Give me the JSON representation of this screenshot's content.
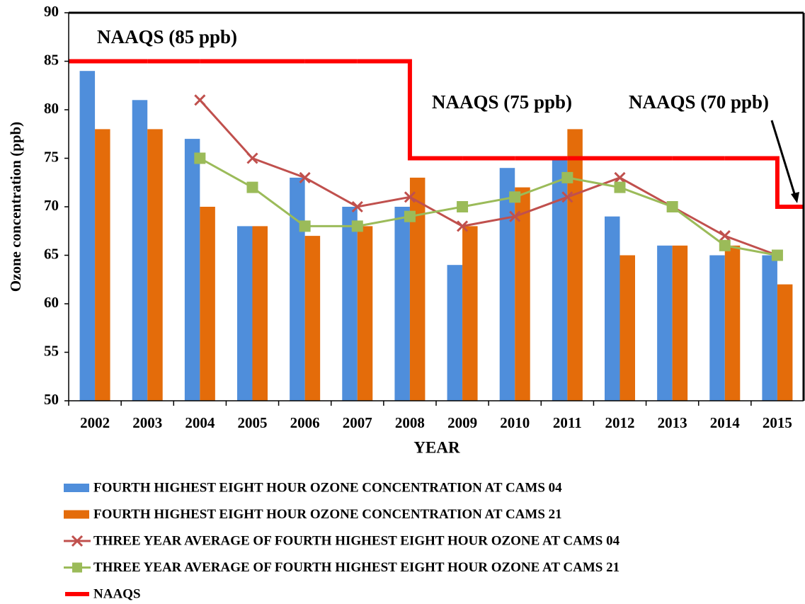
{
  "chart_data": {
    "type": "bar",
    "y_label": "Ozone concentration (ppb)",
    "x_label": "YEAR",
    "categories": [
      "2002",
      "2003",
      "2004",
      "2005",
      "2006",
      "2007",
      "2008",
      "2009",
      "2010",
      "2011",
      "2012",
      "2013",
      "2014",
      "2015"
    ],
    "series": [
      {
        "name": "FOURTH HIGHEST EIGHT HOUR OZONE CONCENTRATION AT CAMS 04",
        "type": "bar",
        "color": "#4f8edb",
        "values": [
          84,
          81,
          77,
          68,
          73,
          70,
          70,
          64,
          74,
          75,
          69,
          66,
          65,
          65
        ]
      },
      {
        "name": "FOURTH HIGHEST EIGHT HOUR OZONE CONCENTRATION AT CAMS 21",
        "type": "bar",
        "color": "#e46c0a",
        "values": [
          78,
          78,
          70,
          68,
          67,
          68,
          73,
          68,
          72,
          78,
          65,
          66,
          66,
          62
        ]
      },
      {
        "name": "THREE YEAR AVERAGE OF FOURTH HIGHEST EIGHT HOUR OZONE AT CAMS 04",
        "type": "line",
        "marker": "x",
        "color": "#c0504d",
        "values": [
          null,
          null,
          81,
          75,
          73,
          70,
          71,
          68,
          69,
          71,
          73,
          70,
          67,
          65
        ]
      },
      {
        "name": "THREE YEAR AVERAGE OF FOURTH HIGHEST EIGHT HOUR OZONE AT CAMS 21",
        "type": "line",
        "marker": "square",
        "color": "#9bbb59",
        "values": [
          null,
          null,
          75,
          72,
          68,
          68,
          69,
          70,
          71,
          73,
          72,
          70,
          66,
          65
        ]
      },
      {
        "name": "NAAQS",
        "type": "step",
        "step": "post",
        "color": "#ff0000",
        "values": [
          85,
          85,
          85,
          85,
          85,
          85,
          75,
          75,
          75,
          75,
          75,
          75,
          75,
          70
        ]
      }
    ],
    "annotations": [
      "NAAQS (85 ppb)",
      "NAAQS (75 ppb)",
      "NAAQS (70 ppb)"
    ],
    "ylim": [
      50,
      90
    ],
    "yticks": [
      50,
      55,
      60,
      65,
      70,
      75,
      80,
      85,
      90
    ]
  }
}
